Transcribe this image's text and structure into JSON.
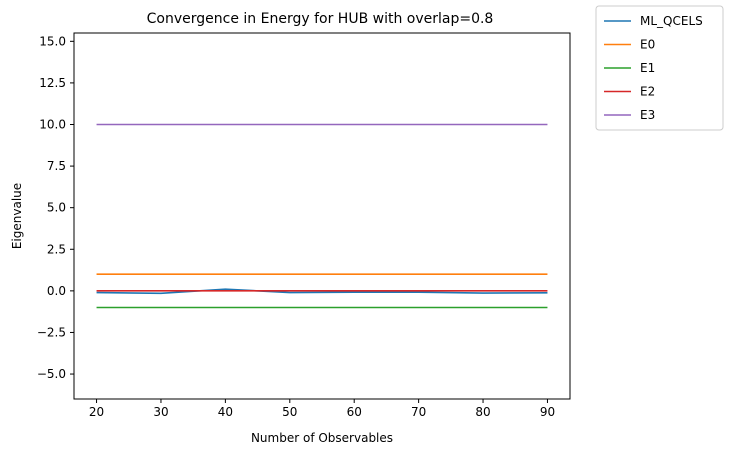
{
  "chart_data": {
    "type": "line",
    "title": "Convergence in Energy for HUB with overlap=0.8",
    "xlabel": "Number of Observables",
    "ylabel": "Eigenvalue",
    "x": [
      20,
      30,
      40,
      50,
      60,
      70,
      80,
      90
    ],
    "xlim": [
      16.5,
      93.5
    ],
    "ylim": [
      -6.5,
      15.5
    ],
    "xticks": [
      20,
      30,
      40,
      50,
      60,
      70,
      80,
      90
    ],
    "yticks": [
      -5.0,
      -2.5,
      0.0,
      2.5,
      5.0,
      7.5,
      10.0,
      12.5,
      15.0
    ],
    "xtick_labels": [
      "20",
      "30",
      "40",
      "50",
      "60",
      "70",
      "80",
      "90"
    ],
    "ytick_labels": [
      "−5.0",
      "−2.5",
      "0.0",
      "2.5",
      "5.0",
      "7.5",
      "10.0",
      "12.5",
      "15.0"
    ],
    "grid": false,
    "legend_position": "outside top-right",
    "series": [
      {
        "name": "ML_QCELS",
        "color": "#1f77b4",
        "values": [
          -0.1,
          -0.15,
          0.1,
          -0.1,
          -0.08,
          -0.08,
          -0.13,
          -0.12
        ]
      },
      {
        "name": "E0",
        "color": "#ff7f0e",
        "values": [
          1.0,
          1.0,
          1.0,
          1.0,
          1.0,
          1.0,
          1.0,
          1.0
        ]
      },
      {
        "name": "E1",
        "color": "#2ca02c",
        "values": [
          -1.0,
          -1.0,
          -1.0,
          -1.0,
          -1.0,
          -1.0,
          -1.0,
          -1.0
        ]
      },
      {
        "name": "E2",
        "color": "#d62728",
        "values": [
          0.0,
          0.0,
          0.0,
          0.0,
          0.0,
          0.0,
          0.0,
          0.0
        ]
      },
      {
        "name": "E3",
        "color": "#9467bd",
        "values": [
          10.0,
          10.0,
          10.0,
          10.0,
          10.0,
          10.0,
          10.0,
          10.0
        ]
      }
    ]
  }
}
